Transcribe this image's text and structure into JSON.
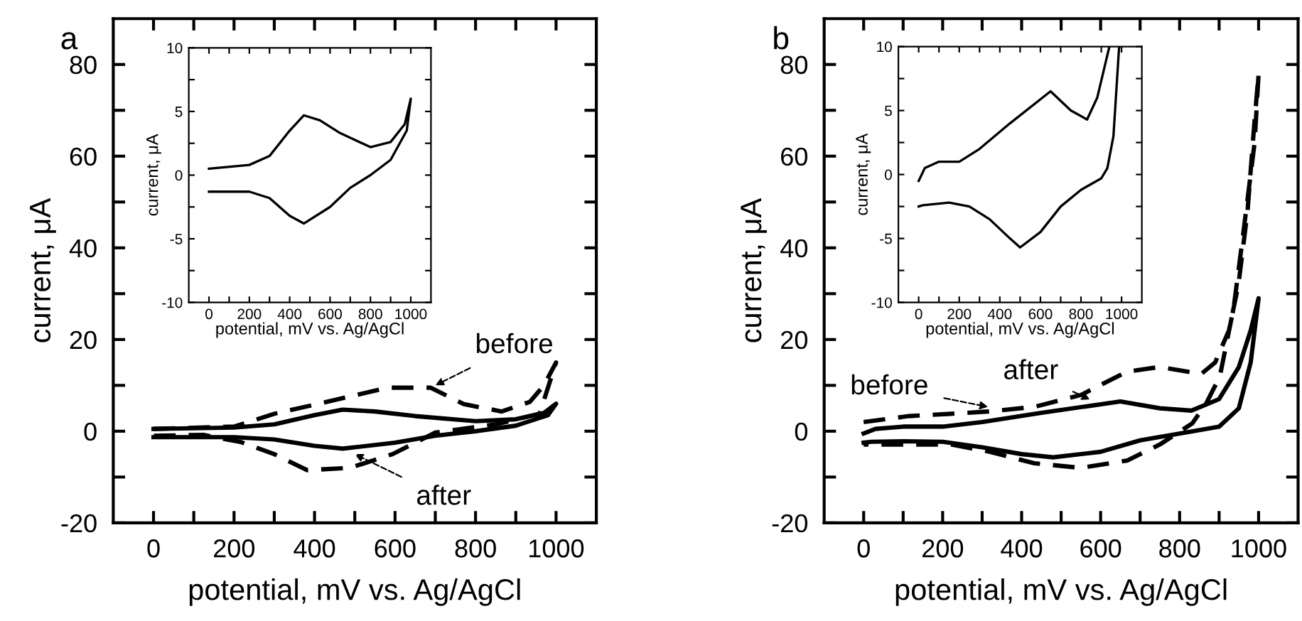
{
  "chart_data": [
    {
      "type": "line",
      "title": "a",
      "xlabel": "potential, mV vs. Ag/AgCl",
      "ylabel": "current, μA",
      "xlim": [
        -100,
        1100
      ],
      "ylim": [
        -20,
        90
      ],
      "xticks": [
        0,
        {
          "value": 100,
          "label": null
        },
        200,
        {
          "value": 300,
          "label": null
        },
        400,
        {
          "value": 500,
          "label": null
        },
        600,
        {
          "value": 700,
          "label": null
        },
        800,
        {
          "value": 900,
          "label": null
        },
        1000
      ],
      "yticks": [
        -20,
        {
          "value": -10,
          "label": null
        },
        0,
        {
          "value": 10,
          "label": null
        },
        20,
        {
          "value": 30,
          "label": null
        },
        40,
        {
          "value": 50,
          "label": null
        },
        60,
        {
          "value": 70,
          "label": null
        },
        80
      ],
      "grid": false,
      "legend": false,
      "marker": "none",
      "series": [
        {
          "color": "#000000",
          "line_style": "solid",
          "x": [
            0,
            200,
            300,
            400,
            470,
            550,
            650,
            800,
            900,
            970,
            1000,
            980,
            900,
            800,
            700,
            600,
            470,
            400,
            300,
            200,
            0
          ],
          "values": [
            0.5,
            0.8,
            1.5,
            3.5,
            4.7,
            4.3,
            3.3,
            2.2,
            2.6,
            4,
            6,
            3.5,
            1.2,
            0,
            -1,
            -2.5,
            -3.8,
            -3.2,
            -1.8,
            -1.3,
            -1.3
          ]
        },
        {
          "color": "#000000",
          "line_style": "dashed",
          "x": [
            0,
            200,
            300,
            406,
            582,
            688,
            771,
            865,
            935,
            970,
            1000,
            959,
            850,
            700,
            594,
            488,
            382,
            300,
            218,
            124,
            0
          ],
          "values": [
            0.5,
            1,
            3.8,
            5.9,
            9.5,
            9.5,
            5.9,
            4.3,
            6.4,
            10,
            15,
            3.8,
            1.5,
            -0.3,
            -5,
            -8,
            -8.5,
            -5,
            -2.4,
            -0.8,
            -1
          ]
        }
      ],
      "annotations": [
        {
          "text": "before",
          "x": 700,
          "y": 10
        },
        {
          "text": "after",
          "x": 500,
          "y": -5
        }
      ]
    },
    {
      "type": "line",
      "xlabel": "potential, mV vs. Ag/AgCl",
      "ylabel": "current, μA",
      "xlim": [
        -100,
        1100
      ],
      "ylim": [
        -10,
        10
      ],
      "xticks": [
        0,
        {
          "value": 100,
          "label": null
        },
        200,
        {
          "value": 300,
          "label": null
        },
        400,
        {
          "value": 500,
          "label": null
        },
        600,
        {
          "value": 700,
          "label": null
        },
        800,
        {
          "value": 900,
          "label": null
        },
        1000
      ],
      "yticks": [
        -10,
        {
          "value": -7.5,
          "label": null
        },
        -5,
        {
          "value": -2.5,
          "label": null
        },
        0,
        {
          "value": 2.5,
          "label": null
        },
        5,
        {
          "value": 7.5,
          "label": null
        },
        10
      ],
      "grid": false,
      "legend": false,
      "marker": "none",
      "series": [
        {
          "color": "#000000",
          "line_style": "solid",
          "x": [
            0,
            200,
            300,
            400,
            470,
            550,
            650,
            800,
            900,
            970,
            1000,
            980,
            900,
            800,
            700,
            600,
            470,
            400,
            300,
            200,
            0
          ],
          "values": [
            0.5,
            0.8,
            1.5,
            3.5,
            4.7,
            4.3,
            3.3,
            2.2,
            2.6,
            4,
            6,
            3.5,
            1.2,
            0,
            -1,
            -2.5,
            -3.8,
            -3.2,
            -1.8,
            -1.3,
            -1.3
          ]
        }
      ]
    },
    {
      "type": "line",
      "title": "b",
      "xlabel": "potential, mV vs. Ag/AgCl",
      "ylabel": "current, μA",
      "xlim": [
        -100,
        1100
      ],
      "ylim": [
        -20,
        90
      ],
      "xticks": [
        0,
        {
          "value": 100,
          "label": null
        },
        200,
        {
          "value": 300,
          "label": null
        },
        400,
        {
          "value": 500,
          "label": null
        },
        600,
        {
          "value": 700,
          "label": null
        },
        800,
        {
          "value": 900,
          "label": null
        },
        1000
      ],
      "yticks": [
        -20,
        {
          "value": -10,
          "label": null
        },
        0,
        {
          "value": 10,
          "label": null
        },
        20,
        {
          "value": 30,
          "label": null
        },
        40,
        {
          "value": 50,
          "label": null
        },
        60,
        {
          "value": 70,
          "label": null
        },
        80
      ],
      "grid": false,
      "legend": false,
      "marker": "none",
      "series": [
        {
          "color": "#000000",
          "line_style": "solid",
          "x": [
            0,
            30,
            100,
            200,
            300,
            450,
            650,
            750,
            830,
            900,
            950,
            980,
            1000,
            980,
            950,
            900,
            820,
            700,
            600,
            480,
            400,
            300,
            200,
            100,
            20,
            0
          ],
          "values": [
            -0.5,
            0.5,
            1,
            1,
            2,
            4,
            6.5,
            5,
            4.5,
            7,
            14,
            22,
            29,
            15,
            5,
            1,
            -0.2,
            -2,
            -4.5,
            -5.7,
            -5,
            -3.5,
            -2.3,
            -2.2,
            -2.3,
            -2.5
          ]
        },
        {
          "color": "#000000",
          "line_style": "dashed",
          "x": [
            0,
            115,
            221,
            315,
            432,
            550,
            667,
            749,
            855,
            890,
            925,
            949,
            972,
            990,
            1000,
            990,
            961,
            937,
            902,
            867,
            832,
            750,
            667,
            550,
            432,
            315,
            221,
            115,
            0
          ],
          "values": [
            2,
            3.3,
            3.8,
            4.3,
            5.3,
            7.9,
            13,
            14,
            12.5,
            15,
            22,
            32,
            48,
            68,
            78,
            63,
            43,
            27,
            12,
            6,
            1.7,
            -2.9,
            -6.4,
            -8,
            -7,
            -4.4,
            -2.9,
            -2.9,
            -2.9
          ]
        }
      ],
      "annotations": [
        {
          "text": "before",
          "x": 315,
          "y": 5.3
        },
        {
          "text": "after",
          "x": 573,
          "y": 6.9
        }
      ]
    },
    {
      "type": "line",
      "xlabel": "potential, mV vs. Ag/AgCl",
      "ylabel": "current, μA",
      "xlim": [
        -100,
        1100
      ],
      "ylim": [
        -10,
        10
      ],
      "xticks": [
        0,
        {
          "value": 100,
          "label": null
        },
        200,
        {
          "value": 300,
          "label": null
        },
        400,
        {
          "value": 500,
          "label": null
        },
        600,
        {
          "value": 700,
          "label": null
        },
        800,
        {
          "value": 900,
          "label": null
        },
        1000
      ],
      "yticks": [
        -10,
        {
          "value": -7.5,
          "label": null
        },
        -5,
        {
          "value": -2.5,
          "label": null
        },
        0,
        {
          "value": 2.5,
          "label": null
        },
        5,
        {
          "value": 7.5,
          "label": null
        },
        10
      ],
      "grid": false,
      "legend": false,
      "marker": "none",
      "series": [
        {
          "color": "#000000",
          "line_style": "solid",
          "x": [
            0,
            30,
            100,
            200,
            300,
            450,
            650,
            750,
            830,
            880,
            940,
            960,
            988,
            960,
            930,
            900,
            800,
            700,
            600,
            500,
            450,
            350,
            250,
            150,
            20,
            0
          ],
          "values": [
            -0.5,
            0.5,
            1,
            1,
            2,
            4,
            6.5,
            5,
            4.3,
            6,
            10,
            null,
            10,
            3,
            0.5,
            -0.3,
            -1.2,
            -2.5,
            -4.5,
            -5.7,
            -5,
            -3.5,
            -2.5,
            -2.2,
            -2.4,
            -2.5
          ]
        }
      ]
    }
  ]
}
